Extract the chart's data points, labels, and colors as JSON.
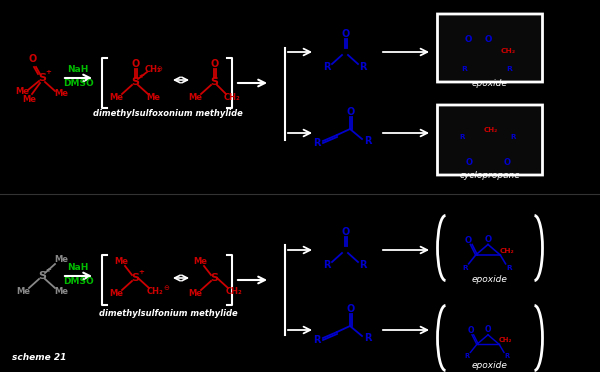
{
  "bg_color": "#000000",
  "fig_width": 6.0,
  "fig_height": 3.72,
  "dpi": 100,
  "scheme_label": "scheme 21",
  "RED": "#CC0000",
  "BLUE": "#0000CC",
  "GREEN": "#00BB00",
  "WHITE": "#FFFFFF",
  "reaction1_intermediate": "dimethylsulfoxonium methylide",
  "reaction2_intermediate": "dimethylsulfonium methylide",
  "product1_top": "epoxide",
  "product1_bot": "cyclopropane",
  "product2_top": "epoxide",
  "product2_bot": "epoxide"
}
